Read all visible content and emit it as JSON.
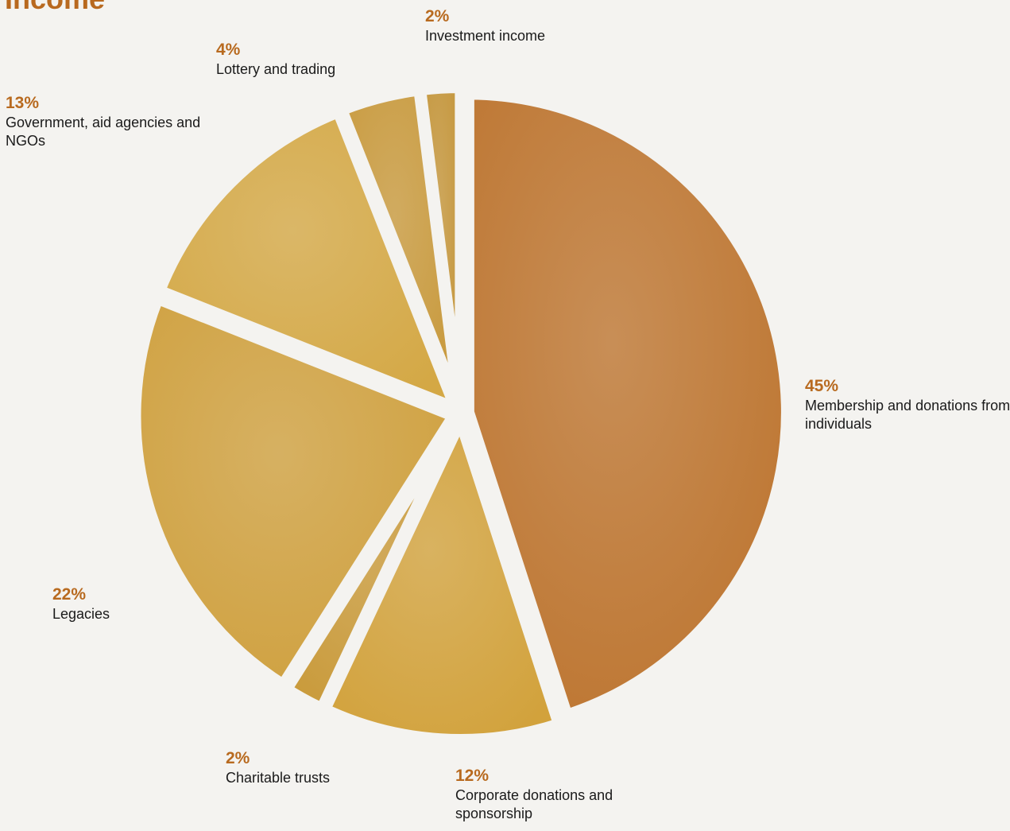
{
  "chart_data": {
    "type": "pie",
    "title": "Income",
    "categories": [
      "Membership and donations from individuals",
      "Corporate donations and sponsorship",
      "Charitable trusts",
      "Legacies",
      "Government, aid agencies and NGOs",
      "Lottery and trading",
      "Investment income"
    ],
    "values": [
      45,
      12,
      2,
      22,
      13,
      4,
      2
    ],
    "value_labels": [
      "45%",
      "12%",
      "2%",
      "22%",
      "13%",
      "4%",
      "2%"
    ],
    "colors": [
      "#bd7530",
      "#d2a23c",
      "#c99a3a",
      "#cfa03e",
      "#d4a845",
      "#c8993c",
      "#c4953a"
    ]
  }
}
